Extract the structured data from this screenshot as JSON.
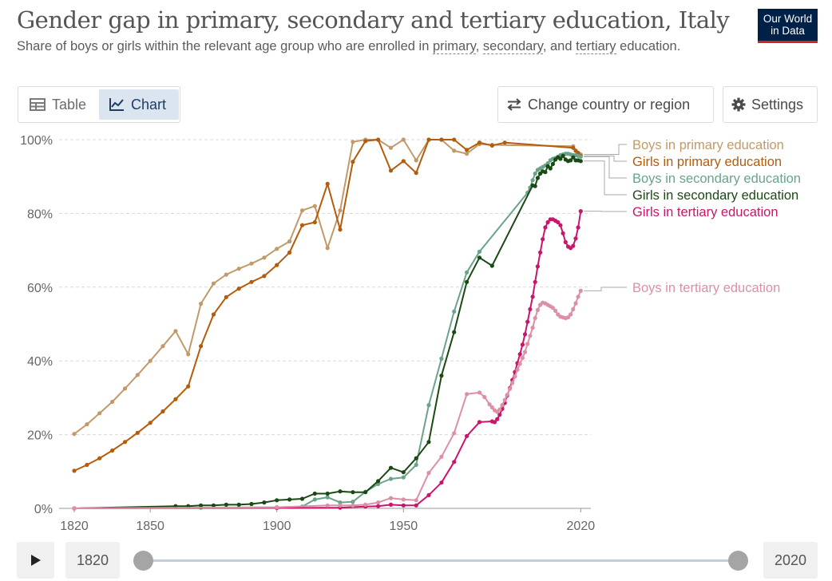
{
  "header": {
    "title": "Gender gap in primary, secondary and tertiary education, Italy",
    "subtitle_pre": "Share of boys or girls within the relevant age group who are enrolled in ",
    "subtitle_link1": "primary",
    "subtitle_sep1": ", ",
    "subtitle_link2": "secondary",
    "subtitle_sep2": ", and ",
    "subtitle_link3": "tertiary",
    "subtitle_post": " education.",
    "logo_line1": "Our World",
    "logo_line2": "in Data"
  },
  "controls": {
    "tab_table": "Table",
    "tab_chart": "Chart",
    "change_country": "Change country or region",
    "settings": "Settings"
  },
  "timeline": {
    "start_year": "1820",
    "end_year": "2020"
  },
  "colors": {
    "boys_primary": "#c19a6b",
    "girls_primary": "#b35c0c",
    "boys_secondary": "#6aa38a",
    "girls_secondary": "#1a4a14",
    "girls_tertiary": "#c8166b",
    "boys_tertiary": "#dd8fa6"
  },
  "chart_data": {
    "type": "line",
    "title": "",
    "xlabel": "",
    "ylabel": "",
    "xlim": [
      1814,
      2024
    ],
    "ylim": [
      0,
      100
    ],
    "x_ticks": [
      1820,
      1850,
      1900,
      1950,
      2020
    ],
    "y_ticks": [
      "0%",
      "20%",
      "40%",
      "60%",
      "80%",
      "100%"
    ],
    "y_tick_values": [
      0,
      20,
      40,
      60,
      80,
      100
    ],
    "grid": "horizontal-dashed",
    "legend": "right-inline",
    "series": [
      {
        "name": "Boys in primary education",
        "color_key": "boys_primary",
        "points": [
          [
            1820,
            20.2
          ],
          [
            1825,
            22.8
          ],
          [
            1830,
            25.8
          ],
          [
            1835,
            28.9
          ],
          [
            1840,
            32.5
          ],
          [
            1845,
            36.2
          ],
          [
            1850,
            40
          ],
          [
            1855,
            44
          ],
          [
            1860,
            48.1
          ],
          [
            1865,
            41.8
          ],
          [
            1870,
            55.5
          ],
          [
            1875,
            61
          ],
          [
            1880,
            63.4
          ],
          [
            1885,
            65
          ],
          [
            1890,
            66.4
          ],
          [
            1895,
            68
          ],
          [
            1900,
            70.4
          ],
          [
            1905,
            72.4
          ],
          [
            1910,
            80.8
          ],
          [
            1915,
            82
          ],
          [
            1920,
            70.6
          ],
          [
            1925,
            80.8
          ],
          [
            1930,
            99.4
          ],
          [
            1935,
            100
          ],
          [
            1940,
            100
          ],
          [
            1945,
            97.8
          ],
          [
            1950,
            100
          ],
          [
            1955,
            94.4
          ],
          [
            1960,
            100
          ],
          [
            1965,
            100
          ],
          [
            1970,
            97
          ],
          [
            1975,
            96.2
          ],
          [
            1980,
            98.8
          ],
          [
            1985,
            98.6
          ],
          [
            2017,
            98.2
          ],
          [
            2018,
            97
          ],
          [
            2019,
            96.4
          ],
          [
            2020,
            96
          ]
        ]
      },
      {
        "name": "Girls in primary education",
        "color_key": "girls_primary",
        "points": [
          [
            1820,
            10.2
          ],
          [
            1825,
            11.8
          ],
          [
            1830,
            13.6
          ],
          [
            1835,
            15.7
          ],
          [
            1840,
            18
          ],
          [
            1845,
            20.5
          ],
          [
            1850,
            23.2
          ],
          [
            1855,
            26.3
          ],
          [
            1860,
            29.6
          ],
          [
            1865,
            33.1
          ],
          [
            1870,
            44
          ],
          [
            1875,
            52.6
          ],
          [
            1880,
            57.3
          ],
          [
            1885,
            59.6
          ],
          [
            1890,
            61.4
          ],
          [
            1895,
            63
          ],
          [
            1900,
            66
          ],
          [
            1905,
            69.4
          ],
          [
            1910,
            76.8
          ],
          [
            1915,
            77.6
          ],
          [
            1920,
            88
          ],
          [
            1925,
            75.6
          ],
          [
            1930,
            94
          ],
          [
            1935,
            99.6
          ],
          [
            1940,
            100
          ],
          [
            1945,
            91.6
          ],
          [
            1950,
            94.2
          ],
          [
            1955,
            91
          ],
          [
            1960,
            100
          ],
          [
            1965,
            100
          ],
          [
            1970,
            100
          ],
          [
            1975,
            97.2
          ],
          [
            1980,
            99.2
          ],
          [
            1985,
            98.4
          ],
          [
            1990,
            99.2
          ],
          [
            2017,
            97.8
          ],
          [
            2018,
            97
          ],
          [
            2019,
            96.4
          ],
          [
            2020,
            95.6
          ]
        ]
      },
      {
        "name": "Boys in secondary education",
        "color_key": "boys_secondary",
        "points": [
          [
            1820,
            0
          ],
          [
            1870,
            0.2
          ],
          [
            1900,
            0.3
          ],
          [
            1910,
            0.5
          ],
          [
            1915,
            2.4
          ],
          [
            1920,
            3
          ],
          [
            1925,
            1.6
          ],
          [
            1930,
            1.8
          ],
          [
            1935,
            4.5
          ],
          [
            1940,
            6.6
          ],
          [
            1945,
            8
          ],
          [
            1950,
            8.4
          ],
          [
            1955,
            11.8
          ],
          [
            1960,
            28
          ],
          [
            1965,
            40.6
          ],
          [
            1970,
            53.4
          ],
          [
            1975,
            64
          ],
          [
            1980,
            69.6
          ],
          [
            1999,
            85.6
          ],
          [
            2000,
            87
          ],
          [
            2001,
            89
          ],
          [
            2002,
            90.8
          ],
          [
            2003,
            91.8
          ],
          [
            2004,
            92.2
          ],
          [
            2005,
            92.6
          ],
          [
            2006,
            93
          ],
          [
            2007,
            93.6
          ],
          [
            2008,
            94.4
          ],
          [
            2009,
            94.8
          ],
          [
            2010,
            95
          ],
          [
            2011,
            95.4
          ],
          [
            2012,
            95.8
          ],
          [
            2013,
            96
          ],
          [
            2014,
            96.2
          ],
          [
            2015,
            96.2
          ],
          [
            2016,
            96
          ],
          [
            2017,
            95.8
          ],
          [
            2018,
            95.8
          ],
          [
            2019,
            95.6
          ],
          [
            2020,
            95.4
          ]
        ]
      },
      {
        "name": "Girls in secondary education",
        "color_key": "girls_secondary",
        "points": [
          [
            1820,
            0
          ],
          [
            1860,
            0.6
          ],
          [
            1865,
            0.6
          ],
          [
            1870,
            0.8
          ],
          [
            1875,
            0.8
          ],
          [
            1880,
            1
          ],
          [
            1885,
            1
          ],
          [
            1890,
            1.2
          ],
          [
            1895,
            1.6
          ],
          [
            1900,
            2.2
          ],
          [
            1905,
            2.4
          ],
          [
            1910,
            2.6
          ],
          [
            1915,
            4
          ],
          [
            1920,
            4
          ],
          [
            1925,
            4.6
          ],
          [
            1930,
            4.4
          ],
          [
            1935,
            4.4
          ],
          [
            1940,
            7.4
          ],
          [
            1945,
            11
          ],
          [
            1950,
            9.8
          ],
          [
            1955,
            13.6
          ],
          [
            1960,
            18
          ],
          [
            1965,
            36
          ],
          [
            1970,
            47.8
          ],
          [
            1975,
            61.4
          ],
          [
            1980,
            68
          ],
          [
            1985,
            65.8
          ],
          [
            2001,
            87.6
          ],
          [
            2002,
            87.4
          ],
          [
            2003,
            89.6
          ],
          [
            2004,
            90.8
          ],
          [
            2005,
            91.4
          ],
          [
            2006,
            91.2
          ],
          [
            2007,
            92.8
          ],
          [
            2008,
            92.2
          ],
          [
            2009,
            93.4
          ],
          [
            2010,
            94.6
          ],
          [
            2011,
            95.2
          ],
          [
            2012,
            94.8
          ],
          [
            2013,
            95.6
          ],
          [
            2014,
            94.6
          ],
          [
            2015,
            94.2
          ],
          [
            2016,
            94.4
          ],
          [
            2017,
            95.2
          ],
          [
            2018,
            94.4
          ],
          [
            2019,
            94.4
          ],
          [
            2020,
            94.2
          ]
        ]
      },
      {
        "name": "Girls in tertiary education",
        "color_key": "girls_tertiary",
        "points": [
          [
            1820,
            0
          ],
          [
            1900,
            0.1
          ],
          [
            1925,
            0.2
          ],
          [
            1935,
            0.5
          ],
          [
            1940,
            0.6
          ],
          [
            1945,
            1
          ],
          [
            1950,
            0.8
          ],
          [
            1955,
            0.8
          ],
          [
            1960,
            3.6
          ],
          [
            1965,
            7
          ],
          [
            1970,
            12.6
          ],
          [
            1975,
            19.6
          ],
          [
            1980,
            23.4
          ],
          [
            1985,
            23.6
          ],
          [
            1986,
            23.4
          ],
          [
            1987,
            24.2
          ],
          [
            1988,
            25.4
          ],
          [
            1989,
            27
          ],
          [
            1990,
            28.6
          ],
          [
            1991,
            30.6
          ],
          [
            1992,
            32.6
          ],
          [
            1993,
            34.8
          ],
          [
            1994,
            37
          ],
          [
            1995,
            39.4
          ],
          [
            1996,
            41.8
          ],
          [
            1997,
            44.4
          ],
          [
            1998,
            47.2
          ],
          [
            1999,
            50.6
          ],
          [
            2000,
            54
          ],
          [
            2001,
            57.4
          ],
          [
            2002,
            61.4
          ],
          [
            2003,
            65.6
          ],
          [
            2004,
            69.4
          ],
          [
            2005,
            73
          ],
          [
            2006,
            76.2
          ],
          [
            2007,
            77.6
          ],
          [
            2008,
            78.4
          ],
          [
            2009,
            78.4
          ],
          [
            2010,
            78
          ],
          [
            2011,
            77.6
          ],
          [
            2012,
            76.8
          ],
          [
            2013,
            74.6
          ],
          [
            2014,
            72.2
          ],
          [
            2015,
            71
          ],
          [
            2016,
            70.6
          ],
          [
            2017,
            71.2
          ],
          [
            2018,
            73.2
          ],
          [
            2019,
            76.2
          ],
          [
            2020,
            80.6
          ]
        ]
      },
      {
        "name": "Boys in tertiary education",
        "color_key": "boys_tertiary",
        "points": [
          [
            1820,
            0
          ],
          [
            1900,
            0.3
          ],
          [
            1920,
            0.8
          ],
          [
            1925,
            0.8
          ],
          [
            1930,
            0.8
          ],
          [
            1935,
            1
          ],
          [
            1940,
            1.6
          ],
          [
            1945,
            2.8
          ],
          [
            1950,
            2.4
          ],
          [
            1955,
            2.2
          ],
          [
            1960,
            9.6
          ],
          [
            1965,
            14
          ],
          [
            1970,
            20.4
          ],
          [
            1975,
            31
          ],
          [
            1980,
            31.4
          ],
          [
            1982,
            30.2
          ],
          [
            1984,
            28.2
          ],
          [
            1985,
            27.4
          ],
          [
            1986,
            26.6
          ],
          [
            1987,
            26.2
          ],
          [
            1988,
            26.8
          ],
          [
            1989,
            28
          ],
          [
            1990,
            29.4
          ],
          [
            1991,
            30.8
          ],
          [
            1992,
            32.4
          ],
          [
            1993,
            34
          ],
          [
            1994,
            35.8
          ],
          [
            1995,
            37.6
          ],
          [
            1996,
            39.2
          ],
          [
            1997,
            40.8
          ],
          [
            1998,
            42.4
          ],
          [
            1999,
            44.6
          ],
          [
            2000,
            46.8
          ],
          [
            2001,
            49
          ],
          [
            2002,
            51.6
          ],
          [
            2003,
            53.8
          ],
          [
            2004,
            55.2
          ],
          [
            2005,
            55.8
          ],
          [
            2006,
            55.6
          ],
          [
            2007,
            55.2
          ],
          [
            2008,
            54.8
          ],
          [
            2009,
            54.4
          ],
          [
            2010,
            53.6
          ],
          [
            2011,
            52.6
          ],
          [
            2012,
            52
          ],
          [
            2013,
            51.8
          ],
          [
            2014,
            51.6
          ],
          [
            2015,
            51.8
          ],
          [
            2016,
            52.6
          ],
          [
            2017,
            54
          ],
          [
            2018,
            55.6
          ],
          [
            2019,
            57.4
          ],
          [
            2020,
            59
          ]
        ]
      }
    ]
  }
}
